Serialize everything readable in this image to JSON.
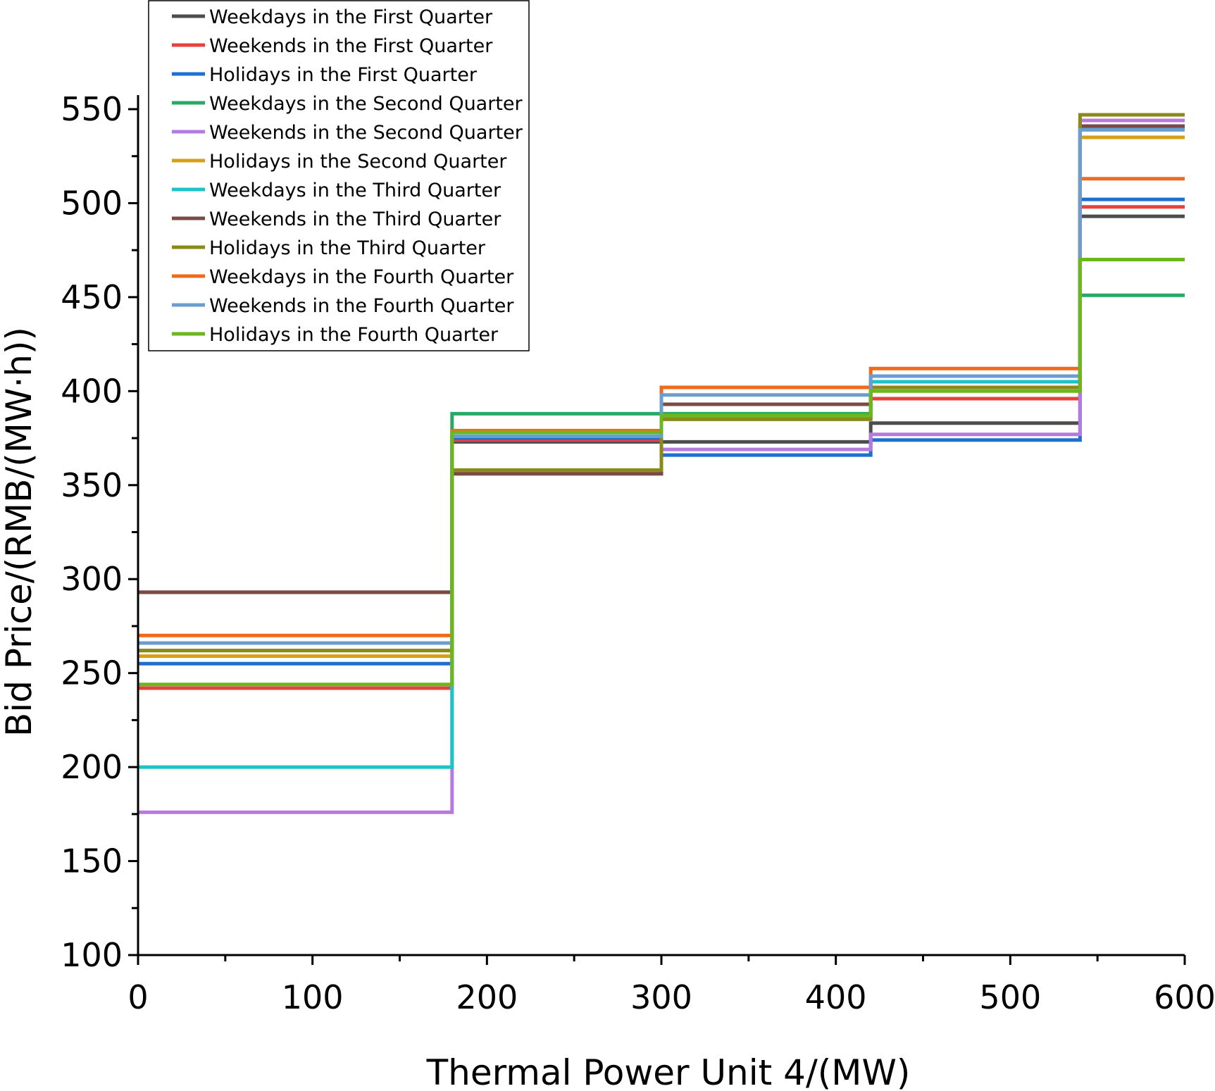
{
  "chart_data": {
    "type": "line",
    "step": true,
    "xlabel": "Thermal Power Unit 4/(MW)",
    "ylabel": "Bid Price/(RMB/(MW·h))",
    "xlim": [
      0,
      600
    ],
    "ylim": [
      100,
      550
    ],
    "x_ticks": [
      0,
      100,
      200,
      300,
      400,
      500,
      600
    ],
    "y_ticks": [
      100,
      150,
      200,
      250,
      300,
      350,
      400,
      450,
      500,
      550
    ],
    "x_breakpoints": [
      0,
      180,
      300,
      420,
      540,
      600
    ],
    "legend_position": "top-left",
    "grid": false,
    "series": [
      {
        "name": "Weekdays in the First Quarter",
        "color": "#4d4d4d",
        "values": [
          293,
          373,
          373,
          383,
          493
        ]
      },
      {
        "name": "Weekends in the First Quarter",
        "color": "#e8413c",
        "values": [
          242,
          374,
          393,
          396,
          498
        ]
      },
      {
        "name": "Holidays in the First Quarter",
        "color": "#1f6fd1",
        "values": [
          255,
          375,
          366,
          374,
          502
        ]
      },
      {
        "name": "Weekdays in the Second Quarter",
        "color": "#2aa866",
        "values": [
          262,
          388,
          388,
          405,
          451
        ]
      },
      {
        "name": "Weekends in the Second Quarter",
        "color": "#b57ae0",
        "values": [
          176,
          357,
          369,
          377,
          544
        ]
      },
      {
        "name": "Holidays in the Second Quarter",
        "color": "#d4a017",
        "values": [
          259,
          357,
          386,
          402,
          535
        ]
      },
      {
        "name": "Weekdays in the Third Quarter",
        "color": "#1cc3c8",
        "values": [
          200,
          376,
          386,
          405,
          540
        ]
      },
      {
        "name": "Weekends in the Third Quarter",
        "color": "#7a4a47",
        "values": [
          293,
          356,
          393,
          402,
          541
        ]
      },
      {
        "name": "Holidays in the Third Quarter",
        "color": "#8a8a1a",
        "values": [
          262,
          358,
          385,
          402,
          547
        ]
      },
      {
        "name": "Weekdays in the Fourth Quarter",
        "color": "#f06a1a",
        "values": [
          270,
          379,
          402,
          412,
          513
        ]
      },
      {
        "name": "Weekends in the Fourth Quarter",
        "color": "#6a9ed0",
        "values": [
          266,
          376,
          398,
          408,
          539
        ]
      },
      {
        "name": "Holidays in the Fourth Quarter",
        "color": "#6ab81e",
        "values": [
          244,
          378,
          387,
          400,
          470
        ]
      }
    ]
  }
}
